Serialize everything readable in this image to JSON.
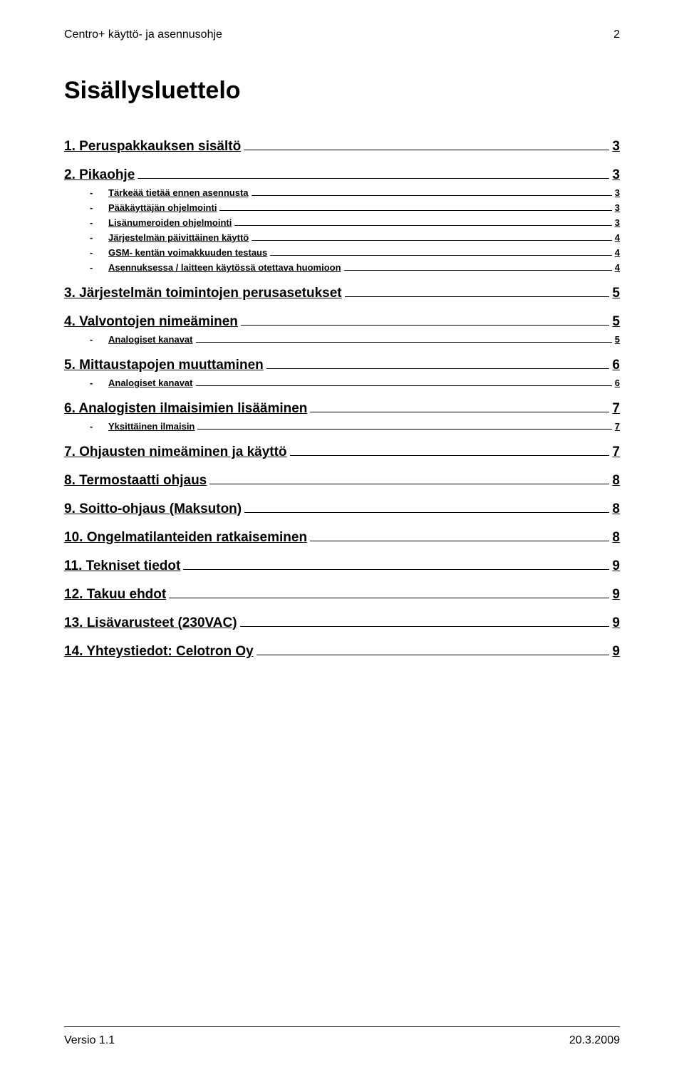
{
  "header": {
    "doc_title": "Centro+ käyttö- ja asennusohje",
    "page_number": "2"
  },
  "title": "Sisällysluettelo",
  "toc": [
    {
      "level": 1,
      "label": "1. Peruspakkauksen sisältö",
      "page": "3"
    },
    {
      "level": 1,
      "label": "2. Pikaohje",
      "page": "3"
    },
    {
      "level": 2,
      "label": "Tärkeää tietää ennen asennusta",
      "page": "3"
    },
    {
      "level": 2,
      "label": "Pääkäyttäjän ohjelmointi",
      "page": "3"
    },
    {
      "level": 2,
      "label": "Lisänumeroiden ohjelmointi",
      "page": "3"
    },
    {
      "level": 2,
      "label": "Järjestelmän päivittäinen käyttö",
      "page": "4"
    },
    {
      "level": 2,
      "label": "GSM- kentän voimakkuuden testaus",
      "page": "4"
    },
    {
      "level": 2,
      "label": "Asennuksessa / laitteen käytössä otettava huomioon",
      "page": "4"
    },
    {
      "level": 1,
      "label": "3. Järjestelmän toimintojen perusasetukset",
      "page": "5"
    },
    {
      "level": 1,
      "label": "4. Valvontojen nimeäminen",
      "page": "5"
    },
    {
      "level": 2,
      "label": "Analogiset kanavat",
      "page": "5"
    },
    {
      "level": 1,
      "label": "5. Mittaustapojen muuttaminen",
      "page": "6"
    },
    {
      "level": 2,
      "label": "Analogiset kanavat",
      "page": "6"
    },
    {
      "level": 1,
      "label": "6. Analogisten ilmaisimien lisääminen",
      "page": "7"
    },
    {
      "level": 2,
      "label": "Yksittäinen ilmaisin",
      "page": "7"
    },
    {
      "level": 1,
      "label": "7. Ohjausten nimeäminen ja käyttö",
      "page": "7"
    },
    {
      "level": 1,
      "label": "8. Termostaatti ohjaus",
      "page": "8"
    },
    {
      "level": 1,
      "label": "9. Soitto-ohjaus (Maksuton)",
      "page": "8"
    },
    {
      "level": 1,
      "label": "10. Ongelmatilanteiden ratkaiseminen",
      "page": "8"
    },
    {
      "level": 1,
      "label": "11. Tekniset tiedot",
      "page": "9"
    },
    {
      "level": 1,
      "label": "12. Takuu ehdot",
      "page": "9"
    },
    {
      "level": 1,
      "label": "13. Lisävarusteet (230VAC)",
      "page": "9"
    },
    {
      "level": 1,
      "label": "14. Yhteystiedot: Celotron Oy",
      "page": "9"
    }
  ],
  "footer": {
    "version": "Versio 1.1",
    "date": "20.3.2009"
  }
}
